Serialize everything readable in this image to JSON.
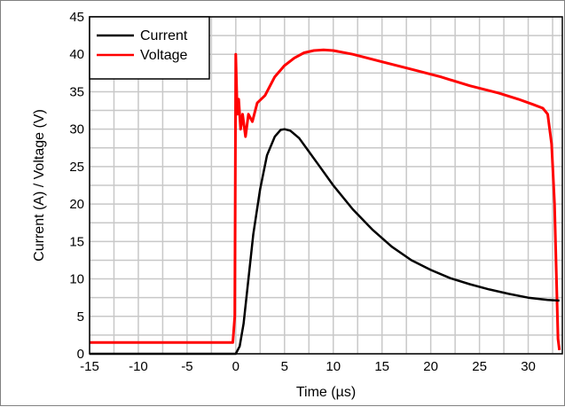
{
  "chart_data": {
    "type": "line",
    "title": "",
    "xlabel": "Time (µs)",
    "ylabel": "Current (A) / Voltage (V)",
    "xlim": [
      -15,
      33.5
    ],
    "ylim": [
      0,
      45
    ],
    "x_ticks": [
      "-15",
      "-10",
      "-5",
      "0",
      "5",
      "10",
      "15",
      "20",
      "25",
      "30"
    ],
    "y_ticks": [
      "0",
      "5",
      "10",
      "15",
      "20",
      "25",
      "30",
      "35",
      "40",
      "45"
    ],
    "grid": true,
    "legend_position": "top-left",
    "series": [
      {
        "name": "Current",
        "color": "#000000",
        "points": [
          [
            -15,
            0
          ],
          [
            0,
            0
          ],
          [
            0.4,
            1
          ],
          [
            0.8,
            4
          ],
          [
            1.3,
            10
          ],
          [
            1.8,
            16
          ],
          [
            2.5,
            22
          ],
          [
            3.2,
            26.5
          ],
          [
            4,
            29
          ],
          [
            4.6,
            29.9
          ],
          [
            5,
            30
          ],
          [
            5.6,
            29.8
          ],
          [
            6.5,
            28.8
          ],
          [
            7.5,
            27
          ],
          [
            8.5,
            25.2
          ],
          [
            10,
            22.5
          ],
          [
            12,
            19.3
          ],
          [
            14,
            16.6
          ],
          [
            16,
            14.3
          ],
          [
            18,
            12.5
          ],
          [
            20,
            11.2
          ],
          [
            22,
            10.1
          ],
          [
            24,
            9.3
          ],
          [
            26,
            8.6
          ],
          [
            28,
            8
          ],
          [
            30,
            7.5
          ],
          [
            32,
            7.2
          ],
          [
            33.2,
            7.1
          ]
        ]
      },
      {
        "name": "Voltage",
        "color": "#ff0000",
        "points": [
          [
            -15,
            1.5
          ],
          [
            -0.3,
            1.5
          ],
          [
            -0.1,
            5
          ],
          [
            0,
            40
          ],
          [
            0.15,
            32
          ],
          [
            0.3,
            34
          ],
          [
            0.5,
            30
          ],
          [
            0.7,
            32
          ],
          [
            1,
            29
          ],
          [
            1.3,
            32
          ],
          [
            1.7,
            31
          ],
          [
            2.2,
            33.5
          ],
          [
            3,
            34.5
          ],
          [
            4,
            37
          ],
          [
            5,
            38.5
          ],
          [
            6,
            39.5
          ],
          [
            7,
            40.2
          ],
          [
            8,
            40.5
          ],
          [
            9,
            40.6
          ],
          [
            10,
            40.5
          ],
          [
            12,
            40
          ],
          [
            15,
            39
          ],
          [
            18,
            38
          ],
          [
            21,
            37
          ],
          [
            24,
            35.8
          ],
          [
            27,
            34.8
          ],
          [
            29,
            34
          ],
          [
            30.5,
            33.3
          ],
          [
            31.5,
            32.8
          ],
          [
            32,
            32
          ],
          [
            32.4,
            28
          ],
          [
            32.7,
            20
          ],
          [
            32.9,
            10
          ],
          [
            33.05,
            2
          ],
          [
            33.2,
            0.5
          ]
        ]
      }
    ]
  }
}
